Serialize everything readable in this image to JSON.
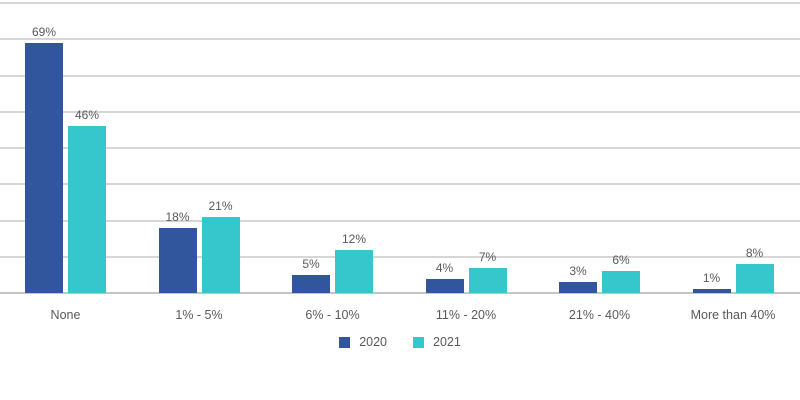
{
  "chart_data": {
    "type": "bar",
    "title": "",
    "categories": [
      "None",
      "1% - 5%",
      "6% - 10%",
      "11% - 20%",
      "21% - 40%",
      "More than 40%"
    ],
    "series": [
      {
        "name": "2020",
        "color": "#31569E",
        "values": [
          69,
          18,
          5,
          4,
          3,
          1
        ]
      },
      {
        "name": "2021",
        "color": "#36C7CC",
        "values": [
          46,
          21,
          12,
          7,
          6,
          8
        ]
      }
    ],
    "value_label_suffix": "%",
    "ylim": [
      0,
      80
    ],
    "gridline_interval": 10,
    "grid": true,
    "y_axis_labels_visible": false,
    "legend_position": "bottom"
  },
  "colors": {
    "background": "#ffffff",
    "gridline": "#d6d6d6",
    "baseline": "#c4c4c4",
    "label_text": "#595959"
  }
}
